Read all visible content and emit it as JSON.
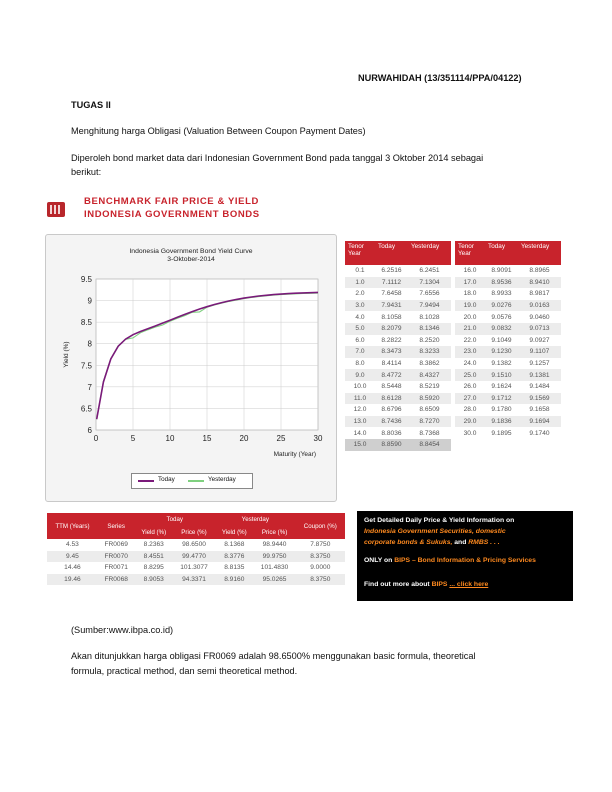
{
  "header": {
    "author": "NURWAHIDAH (13/351114/PPA/04122)",
    "assignment": "TUGAS II",
    "topic": "Menghitung harga Obligasi (Valuation Between Coupon Payment Dates)",
    "intro_line1": "Diperoleh bond market data dari Indonesian Government Bond pada tanggal 3 Oktober 2014 sebagai",
    "intro_line2": "berikut:"
  },
  "banner": {
    "line1": "BENCHMARK FAIR PRICE & YIELD",
    "line2": "INDONESIA GOVERNMENT BONDS"
  },
  "chart_data": {
    "type": "line",
    "title": "Indonesia Government Bond Yield Curve",
    "subtitle": "3-Oktober-2014",
    "xlabel": "Maturity (Year)",
    "ylabel": "Yield (%)",
    "xlim": [
      0,
      30
    ],
    "ylim": [
      6,
      9.5
    ],
    "xticks": [
      0,
      5,
      10,
      15,
      20,
      25,
      30
    ],
    "yticks": [
      6,
      6.5,
      7,
      7.5,
      8,
      8.5,
      9,
      9.5
    ],
    "grid": true,
    "legend_placement": "bottom",
    "series": [
      {
        "name": "Today",
        "color": "#7a1a7a",
        "x": [
          0.1,
          1,
          2,
          3,
          4,
          5,
          6,
          7,
          8,
          9,
          10,
          11,
          12,
          13,
          14,
          15,
          16,
          17,
          18,
          19,
          20,
          21,
          22,
          23,
          24,
          25,
          26,
          27,
          28,
          29,
          30
        ],
        "y": [
          6.2516,
          7.1112,
          7.6458,
          7.9431,
          8.1058,
          8.2079,
          8.2822,
          8.3473,
          8.4114,
          8.4772,
          8.5448,
          8.6128,
          8.6796,
          8.7436,
          8.8036,
          8.859,
          8.9091,
          8.9536,
          8.9933,
          9.0276,
          9.0576,
          9.0832,
          9.1049,
          9.123,
          9.1382,
          9.151,
          9.1624,
          9.1712,
          9.178,
          9.1836,
          9.1895
        ]
      },
      {
        "name": "Yesterday",
        "color": "#7fd07f",
        "x": [
          0.1,
          1,
          2,
          3,
          4,
          5,
          6,
          7,
          8,
          9,
          10,
          11,
          12,
          13,
          14,
          15,
          16,
          17,
          18,
          19,
          20,
          21,
          22,
          23,
          24,
          25,
          26,
          27,
          28,
          29,
          30
        ],
        "y": [
          6.2451,
          7.1304,
          7.6556,
          7.9494,
          8.1028,
          8.1346,
          8.252,
          8.3233,
          8.3862,
          8.4327,
          8.5219,
          8.592,
          8.6509,
          8.727,
          8.7368,
          8.8454,
          8.8965,
          8.941,
          8.9817,
          9.0163,
          9.046,
          9.0713,
          9.0927,
          9.1107,
          9.1257,
          9.1381,
          9.1484,
          9.1569,
          9.1658,
          9.1694,
          9.174
        ]
      }
    ]
  },
  "tenor_table": {
    "headers": [
      "Tenor Year",
      "Today",
      "Yesterday"
    ],
    "left_rows": [
      [
        "0.1",
        "6.2516",
        "6.2451"
      ],
      [
        "1.0",
        "7.1112",
        "7.1304"
      ],
      [
        "2.0",
        "7.6458",
        "7.6556"
      ],
      [
        "3.0",
        "7.9431",
        "7.9494"
      ],
      [
        "4.0",
        "8.1058",
        "8.1028"
      ],
      [
        "5.0",
        "8.2079",
        "8.1346"
      ],
      [
        "6.0",
        "8.2822",
        "8.2520"
      ],
      [
        "7.0",
        "8.3473",
        "8.3233"
      ],
      [
        "8.0",
        "8.4114",
        "8.3862"
      ],
      [
        "9.0",
        "8.4772",
        "8.4327"
      ],
      [
        "10.0",
        "8.5448",
        "8.5219"
      ],
      [
        "11.0",
        "8.6128",
        "8.5920"
      ],
      [
        "12.0",
        "8.6796",
        "8.6509"
      ],
      [
        "13.0",
        "8.7436",
        "8.7270"
      ],
      [
        "14.0",
        "8.8036",
        "8.7368"
      ],
      [
        "15.0",
        "8.8590",
        "8.8454"
      ]
    ],
    "right_rows": [
      [
        "16.0",
        "8.9091",
        "8.8965"
      ],
      [
        "17.0",
        "8.9536",
        "8.9410"
      ],
      [
        "18.0",
        "8.9933",
        "8.9817"
      ],
      [
        "19.0",
        "9.0276",
        "9.0163"
      ],
      [
        "20.0",
        "9.0576",
        "9.0460"
      ],
      [
        "21.0",
        "9.0832",
        "9.0713"
      ],
      [
        "22.0",
        "9.1049",
        "9.0927"
      ],
      [
        "23.0",
        "9.1230",
        "9.1107"
      ],
      [
        "24.0",
        "9.1382",
        "9.1257"
      ],
      [
        "25.0",
        "9.1510",
        "9.1381"
      ],
      [
        "26.0",
        "9.1624",
        "9.1484"
      ],
      [
        "27.0",
        "9.1712",
        "9.1569"
      ],
      [
        "28.0",
        "9.1780",
        "9.1658"
      ],
      [
        "29.0",
        "9.1836",
        "9.1694"
      ],
      [
        "30.0",
        "9.1895",
        "9.1740"
      ]
    ]
  },
  "bond_table": {
    "ttm_header": "TTM (Years)",
    "series_header": "Series",
    "today_header": "Today",
    "yesterday_header": "Yesterday",
    "coupon_header": "Coupon (%)",
    "yield_header": "Yield (%)",
    "price_header": "Price (%)",
    "rows": [
      [
        "4.53",
        "FR0069",
        "8.2363",
        "98.6500",
        "8.1368",
        "98.9440",
        "7.8750"
      ],
      [
        "9.45",
        "FR0070",
        "8.4551",
        "99.4770",
        "8.3776",
        "99.9750",
        "8.3750"
      ],
      [
        "14.46",
        "FR0071",
        "8.8295",
        "101.3077",
        "8.8135",
        "101.4830",
        "9.0000"
      ],
      [
        "19.46",
        "FR0068",
        "8.9053",
        "94.3371",
        "8.9160",
        "95.0265",
        "8.3750"
      ]
    ]
  },
  "promo": {
    "line1": "Get Detailed Daily Price & Yield Information on",
    "line2": "Indonesia Government Securities, domestic",
    "line3a": "corporate bonds & Sukuks,",
    "line3b": "and",
    "line3c": "RMBS . . .",
    "line4a": "ONLY on",
    "line4b": "BIPS",
    "line4c": "– Bond Information & Pricing Services",
    "line5a": "Find out more about",
    "line5b": "BIPS",
    "line5c": "... click here",
    "colors": {
      "accent": "#ff8a1f",
      "background": "#000000"
    }
  },
  "footer": {
    "source": "(Sumber:www.ibpa.co.id)",
    "conclusion_line1": "Akan ditunjukkan harga obligasi FR0069 adalah 98.6500% menggunakan basic formula, theoretical",
    "conclusion_line2": "formula, practical method, dan semi theoretical method."
  }
}
